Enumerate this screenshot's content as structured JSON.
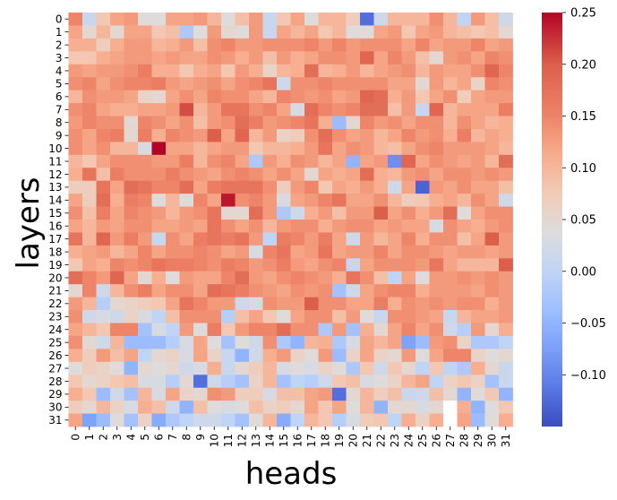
{
  "chart_data": {
    "type": "heatmap",
    "title": "",
    "xlabel": "heads",
    "ylabel": "layers",
    "x_categories": [
      "0",
      "1",
      "2",
      "3",
      "4",
      "5",
      "6",
      "7",
      "8",
      "9",
      "10",
      "11",
      "12",
      "13",
      "14",
      "15",
      "16",
      "17",
      "18",
      "19",
      "20",
      "21",
      "22",
      "23",
      "24",
      "25",
      "26",
      "27",
      "28",
      "29",
      "30",
      "31"
    ],
    "y_categories": [
      "0",
      "1",
      "2",
      "3",
      "4",
      "5",
      "6",
      "7",
      "8",
      "9",
      "10",
      "11",
      "12",
      "13",
      "14",
      "15",
      "16",
      "17",
      "18",
      "19",
      "20",
      "21",
      "22",
      "23",
      "24",
      "25",
      "26",
      "27",
      "28",
      "29",
      "30",
      "31"
    ],
    "colormap": "coolwarm",
    "vmin": -0.15,
    "vmax": 0.25,
    "colorbar_ticks": [
      -0.1,
      -0.05,
      0.0,
      0.05,
      0.1,
      0.15,
      0.2,
      0.25
    ],
    "colorbar_tick_labels": [
      "−0.10",
      "−0.05",
      "0.00",
      "0.05",
      "0.10",
      "0.15",
      "0.20",
      "0.25"
    ],
    "missing_cells": [
      [
        30,
        27
      ],
      [
        31,
        27
      ]
    ],
    "values": [
      [
        0.15,
        0.01,
        0.08,
        0.12,
        0.13,
        0.04,
        0.04,
        0.12,
        0.12,
        0.13,
        0.1,
        0.04,
        0.09,
        0.13,
        0.01,
        0.08,
        0.12,
        0.04,
        0.1,
        0.1,
        0.07,
        -0.12,
        0.02,
        0.1,
        0.1,
        0.1,
        0.14,
        0.1,
        0.0,
        0.13,
        0.09,
        0.02
      ],
      [
        0.12,
        0.05,
        0.1,
        0.05,
        0.12,
        0.12,
        0.08,
        0.09,
        -0.02,
        0.04,
        0.13,
        0.05,
        0.04,
        0.13,
        0.01,
        0.12,
        0.1,
        0.12,
        0.08,
        0.1,
        0.04,
        0.04,
        0.12,
        0.13,
        0.08,
        0.12,
        0.13,
        0.1,
        0.09,
        0.08,
        0.09,
        0.05
      ],
      [
        0.11,
        0.11,
        0.07,
        0.11,
        0.13,
        0.13,
        0.1,
        0.11,
        0.13,
        0.09,
        0.14,
        0.15,
        0.13,
        0.13,
        0.14,
        0.14,
        0.14,
        0.15,
        0.13,
        0.15,
        0.13,
        0.14,
        0.14,
        0.14,
        0.12,
        0.15,
        0.12,
        0.13,
        0.13,
        0.15,
        0.12,
        0.13
      ],
      [
        0.08,
        0.08,
        0.11,
        0.12,
        0.13,
        0.13,
        0.12,
        0.13,
        0.12,
        0.12,
        0.14,
        0.13,
        0.11,
        0.13,
        0.09,
        0.13,
        0.11,
        0.12,
        0.14,
        0.14,
        0.13,
        0.19,
        0.12,
        0.15,
        0.13,
        0.09,
        0.05,
        0.13,
        0.14,
        0.12,
        0.15,
        0.14
      ],
      [
        0.13,
        0.12,
        0.13,
        0.13,
        0.14,
        0.16,
        0.11,
        0.11,
        0.08,
        0.11,
        0.12,
        0.08,
        0.13,
        0.11,
        0.06,
        0.1,
        0.11,
        0.18,
        0.1,
        0.11,
        0.13,
        0.1,
        0.12,
        0.13,
        0.14,
        0.1,
        0.13,
        0.12,
        0.12,
        0.14,
        0.19,
        0.15
      ],
      [
        0.14,
        0.15,
        0.12,
        0.14,
        0.15,
        0.15,
        0.16,
        0.13,
        0.12,
        0.13,
        0.14,
        0.12,
        0.14,
        0.15,
        0.17,
        0.02,
        0.14,
        0.14,
        0.15,
        0.14,
        0.14,
        0.14,
        0.14,
        0.12,
        0.12,
        0.05,
        0.13,
        0.1,
        0.12,
        0.06,
        0.15,
        0.14
      ],
      [
        0.1,
        0.14,
        0.13,
        0.13,
        0.12,
        0.06,
        0.05,
        0.12,
        0.14,
        0.12,
        0.15,
        0.14,
        0.14,
        0.12,
        0.1,
        0.15,
        0.14,
        0.13,
        0.14,
        0.12,
        0.13,
        0.19,
        0.18,
        0.11,
        0.13,
        0.08,
        0.12,
        0.14,
        0.07,
        0.12,
        0.13,
        0.13
      ],
      [
        0.14,
        0.15,
        0.12,
        0.11,
        0.11,
        0.12,
        0.12,
        0.13,
        0.21,
        0.1,
        0.13,
        0.17,
        0.17,
        0.14,
        0.15,
        0.12,
        0.03,
        0.18,
        0.15,
        0.14,
        0.15,
        0.18,
        0.18,
        0.09,
        0.13,
        0.01,
        0.19,
        0.1,
        0.12,
        0.12,
        0.12,
        0.16
      ],
      [
        0.13,
        0.15,
        0.14,
        0.14,
        0.05,
        0.15,
        0.14,
        0.12,
        0.14,
        0.09,
        0.13,
        0.14,
        0.18,
        0.16,
        0.13,
        0.14,
        0.15,
        0.17,
        0.11,
        -0.04,
        0.05,
        0.15,
        0.13,
        0.14,
        0.12,
        0.14,
        0.14,
        0.1,
        0.14,
        0.12,
        0.1,
        0.11
      ],
      [
        0.14,
        0.12,
        0.15,
        0.16,
        0.05,
        0.16,
        0.11,
        0.15,
        0.14,
        0.13,
        0.2,
        0.12,
        0.19,
        0.1,
        0.13,
        0.06,
        0.07,
        0.14,
        0.18,
        0.14,
        0.12,
        0.13,
        0.1,
        0.12,
        0.15,
        0.13,
        0.14,
        0.11,
        0.16,
        0.1,
        0.12,
        0.11
      ],
      [
        0.14,
        0.12,
        0.14,
        0.1,
        0.1,
        0.03,
        0.25,
        0.12,
        0.12,
        0.1,
        0.12,
        0.13,
        0.13,
        0.08,
        0.1,
        0.1,
        0.11,
        0.13,
        0.17,
        0.12,
        0.14,
        0.13,
        0.1,
        0.09,
        0.12,
        0.14,
        0.15,
        0.13,
        0.13,
        0.13,
        0.12,
        0.1
      ],
      [
        0.1,
        0.08,
        0.12,
        0.14,
        0.14,
        0.14,
        0.13,
        0.13,
        0.16,
        0.1,
        0.14,
        0.15,
        0.12,
        -0.02,
        0.13,
        0.11,
        0.14,
        0.13,
        0.1,
        0.12,
        -0.05,
        0.12,
        0.13,
        -0.09,
        0.19,
        0.12,
        0.14,
        0.13,
        0.12,
        0.13,
        0.1,
        0.18
      ],
      [
        0.11,
        0.17,
        0.09,
        0.16,
        0.14,
        0.14,
        0.14,
        0.16,
        0.14,
        0.13,
        0.12,
        0.14,
        0.15,
        0.14,
        0.12,
        0.14,
        0.12,
        0.05,
        0.12,
        0.11,
        0.12,
        0.18,
        0.11,
        0.1,
        0.13,
        0.14,
        0.12,
        0.14,
        0.14,
        0.13,
        0.14,
        0.13
      ],
      [
        0.07,
        0.07,
        0.17,
        0.12,
        0.18,
        0.17,
        0.15,
        0.15,
        0.18,
        0.12,
        0.16,
        0.17,
        0.17,
        0.17,
        0.14,
        0.07,
        0.13,
        0.15,
        0.08,
        0.12,
        0.11,
        0.13,
        0.11,
        0.02,
        0.12,
        -0.13,
        0.13,
        0.12,
        0.14,
        0.12,
        0.12,
        0.09
      ],
      [
        0.12,
        0.07,
        0.18,
        0.11,
        0.16,
        0.15,
        0.04,
        0.1,
        0.04,
        0.15,
        0.12,
        0.24,
        0.14,
        0.15,
        0.13,
        0.03,
        0.12,
        0.13,
        0.15,
        0.17,
        0.12,
        0.12,
        0.14,
        0.1,
        0.07,
        0.08,
        0.11,
        0.12,
        0.1,
        0.14,
        0.12,
        0.02
      ],
      [
        0.14,
        0.09,
        0.16,
        0.12,
        0.15,
        0.14,
        0.13,
        0.1,
        0.13,
        0.14,
        0.17,
        0.05,
        0.05,
        0.18,
        0.13,
        -0.02,
        0.02,
        0.11,
        0.13,
        0.09,
        0.13,
        0.13,
        0.2,
        0.12,
        0.14,
        0.11,
        0.13,
        0.18,
        0.04,
        0.12,
        0.14,
        0.14
      ],
      [
        0.12,
        0.1,
        0.13,
        0.12,
        0.14,
        0.14,
        0.12,
        0.12,
        0.13,
        0.12,
        0.17,
        0.14,
        0.12,
        0.14,
        0.1,
        0.13,
        0.14,
        0.14,
        0.11,
        0.13,
        0.14,
        0.14,
        0.12,
        0.13,
        0.12,
        0.12,
        0.03,
        0.14,
        0.12,
        0.11,
        0.13,
        0.14
      ],
      [
        0.17,
        0.1,
        0.19,
        0.13,
        0.16,
        0.13,
        0.01,
        0.14,
        0.12,
        0.16,
        0.17,
        0.16,
        0.17,
        0.13,
        0.0,
        0.16,
        0.15,
        0.13,
        0.16,
        0.12,
        0.02,
        0.13,
        0.1,
        0.12,
        0.15,
        0.11,
        0.14,
        0.14,
        0.09,
        0.12,
        0.2,
        0.13
      ],
      [
        0.11,
        0.12,
        0.13,
        0.1,
        0.12,
        0.15,
        0.12,
        0.14,
        0.14,
        0.15,
        0.14,
        0.12,
        0.13,
        0.03,
        0.15,
        0.17,
        0.12,
        0.13,
        0.17,
        0.12,
        0.13,
        0.13,
        0.15,
        0.12,
        0.14,
        0.14,
        0.13,
        0.12,
        0.13,
        0.13,
        0.12,
        0.13
      ],
      [
        0.08,
        0.12,
        0.11,
        0.15,
        0.14,
        0.15,
        0.17,
        0.16,
        0.16,
        0.15,
        0.14,
        0.16,
        0.15,
        0.13,
        0.14,
        0.16,
        0.13,
        0.12,
        0.14,
        0.15,
        0.01,
        0.12,
        0.14,
        0.14,
        0.14,
        0.13,
        0.17,
        0.12,
        0.1,
        0.1,
        0.1,
        0.2
      ],
      [
        0.18,
        0.15,
        0.13,
        0.19,
        0.12,
        0.05,
        0.11,
        0.04,
        0.13,
        0.12,
        0.12,
        0.15,
        0.18,
        0.13,
        0.12,
        0.14,
        0.15,
        0.14,
        0.13,
        0.11,
        0.17,
        0.14,
        0.09,
        0.0,
        0.12,
        0.04,
        0.13,
        0.13,
        0.14,
        0.13,
        0.14,
        0.13
      ],
      [
        0.05,
        0.15,
        0.02,
        0.1,
        0.14,
        0.16,
        0.12,
        0.14,
        0.14,
        0.12,
        0.18,
        0.17,
        0.16,
        0.14,
        0.13,
        0.12,
        0.14,
        0.13,
        0.14,
        -0.03,
        0.02,
        0.12,
        0.14,
        0.15,
        0.15,
        0.11,
        0.13,
        0.13,
        0.13,
        0.12,
        0.14,
        0.13
      ],
      [
        0.13,
        0.1,
        -0.01,
        0.05,
        0.06,
        0.07,
        0.08,
        0.12,
        0.17,
        0.15,
        0.13,
        0.13,
        0.02,
        0.03,
        0.14,
        0.13,
        0.13,
        0.2,
        0.14,
        0.14,
        0.12,
        0.12,
        0.16,
        0.11,
        0.14,
        0.13,
        0.14,
        0.13,
        0.14,
        0.14,
        0.11,
        0.13
      ],
      [
        0.14,
        0.02,
        0.03,
        0.02,
        0.06,
        0.03,
        0.0,
        0.09,
        0.14,
        0.14,
        0.14,
        -0.01,
        0.09,
        0.12,
        0.08,
        0.04,
        0.12,
        0.14,
        0.14,
        0.09,
        0.13,
        0.04,
        0.01,
        0.14,
        0.14,
        0.13,
        0.12,
        0.01,
        0.1,
        0.12,
        0.12,
        0.13
      ],
      [
        0.12,
        0.1,
        0.08,
        0.15,
        0.15,
        -0.03,
        0.03,
        0.0,
        0.13,
        0.04,
        0.16,
        0.08,
        0.13,
        0.15,
        0.15,
        0.18,
        0.14,
        0.14,
        -0.02,
        0.13,
        -0.03,
        0.11,
        0.05,
        0.12,
        0.15,
        0.12,
        0.14,
        0.02,
        -0.01,
        0.13,
        0.05,
        0.11
      ],
      [
        0.14,
        0.05,
        0.02,
        0.1,
        -0.04,
        -0.04,
        -0.04,
        -0.01,
        0.03,
        0.12,
        0.04,
        -0.03,
        0.04,
        0.02,
        0.14,
        -0.02,
        -0.05,
        0.1,
        0.11,
        -0.02,
        0.03,
        0.12,
        0.1,
        0.12,
        -0.07,
        -0.04,
        0.13,
        0.14,
        0.06,
        -0.02,
        -0.02,
        0.0
      ],
      [
        0.11,
        0.07,
        0.13,
        0.09,
        0.12,
        0.0,
        0.05,
        0.06,
        0.03,
        0.12,
        0.06,
        0.01,
        -0.05,
        0.02,
        0.11,
        0.13,
        0.06,
        0.04,
        0.13,
        -0.04,
        0.06,
        0.12,
        0.06,
        0.05,
        0.13,
        0.04,
        0.12,
        0.15,
        0.15,
        0.06,
        0.04,
        0.05
      ],
      [
        0.04,
        0.07,
        0.06,
        0.04,
        -0.05,
        0.05,
        0.04,
        0.05,
        0.02,
        0.03,
        0.11,
        0.01,
        0.05,
        0.07,
        0.1,
        0.03,
        0.04,
        0.03,
        0.06,
        0.04,
        -0.02,
        0.08,
        0.02,
        0.08,
        0.05,
        0.0,
        0.08,
        0.0,
        -0.02,
        0.11,
        0.05,
        0.01
      ],
      [
        0.08,
        0.05,
        0.06,
        0.08,
        0.09,
        0.03,
        0.03,
        -0.01,
        0.05,
        -0.12,
        0.02,
        -0.01,
        -0.03,
        0.06,
        0.1,
        -0.03,
        0.0,
        -0.01,
        0.02,
        0.08,
        0.09,
        0.03,
        0.04,
        0.06,
        0.1,
        0.12,
        0.0,
        0.06,
        0.08,
        0.06,
        -0.03,
        0.01
      ],
      [
        0.11,
        0.08,
        -0.04,
        0.02,
        -0.03,
        0.1,
        0.03,
        0.12,
        0.06,
        0.05,
        0.14,
        0.13,
        0.07,
        0.07,
        0.03,
        0.09,
        0.09,
        0.12,
        0.13,
        -0.12,
        0.05,
        0.1,
        0.07,
        0.09,
        0.01,
        0.02,
        0.09,
        0.05,
        -0.05,
        0.04,
        0.08,
        -0.05
      ],
      [
        0.07,
        0.05,
        0.1,
        0.06,
        0.03,
        0.11,
        0.09,
        0.02,
        -0.05,
        0.09,
        0.04,
        0.03,
        0.04,
        0.09,
        0.06,
        0.07,
        0.05,
        0.12,
        0.08,
        0.12,
        0.04,
        0.1,
        -0.05,
        0.05,
        0.05,
        0.03,
        0.05,
        null,
        0.11,
        -0.05,
        0.04,
        0.08
      ],
      [
        0.12,
        -0.07,
        -0.04,
        0.04,
        -0.03,
        0.06,
        -0.06,
        -0.02,
        0.0,
        0.02,
        0.02,
        0.0,
        -0.03,
        0.04,
        0.1,
        -0.06,
        0.0,
        0.1,
        0.08,
        -0.01,
        0.03,
        0.07,
        0.08,
        0.0,
        0.11,
        0.06,
        0.11,
        null,
        0.12,
        -0.04,
        0.04,
        0.11
      ]
    ]
  }
}
